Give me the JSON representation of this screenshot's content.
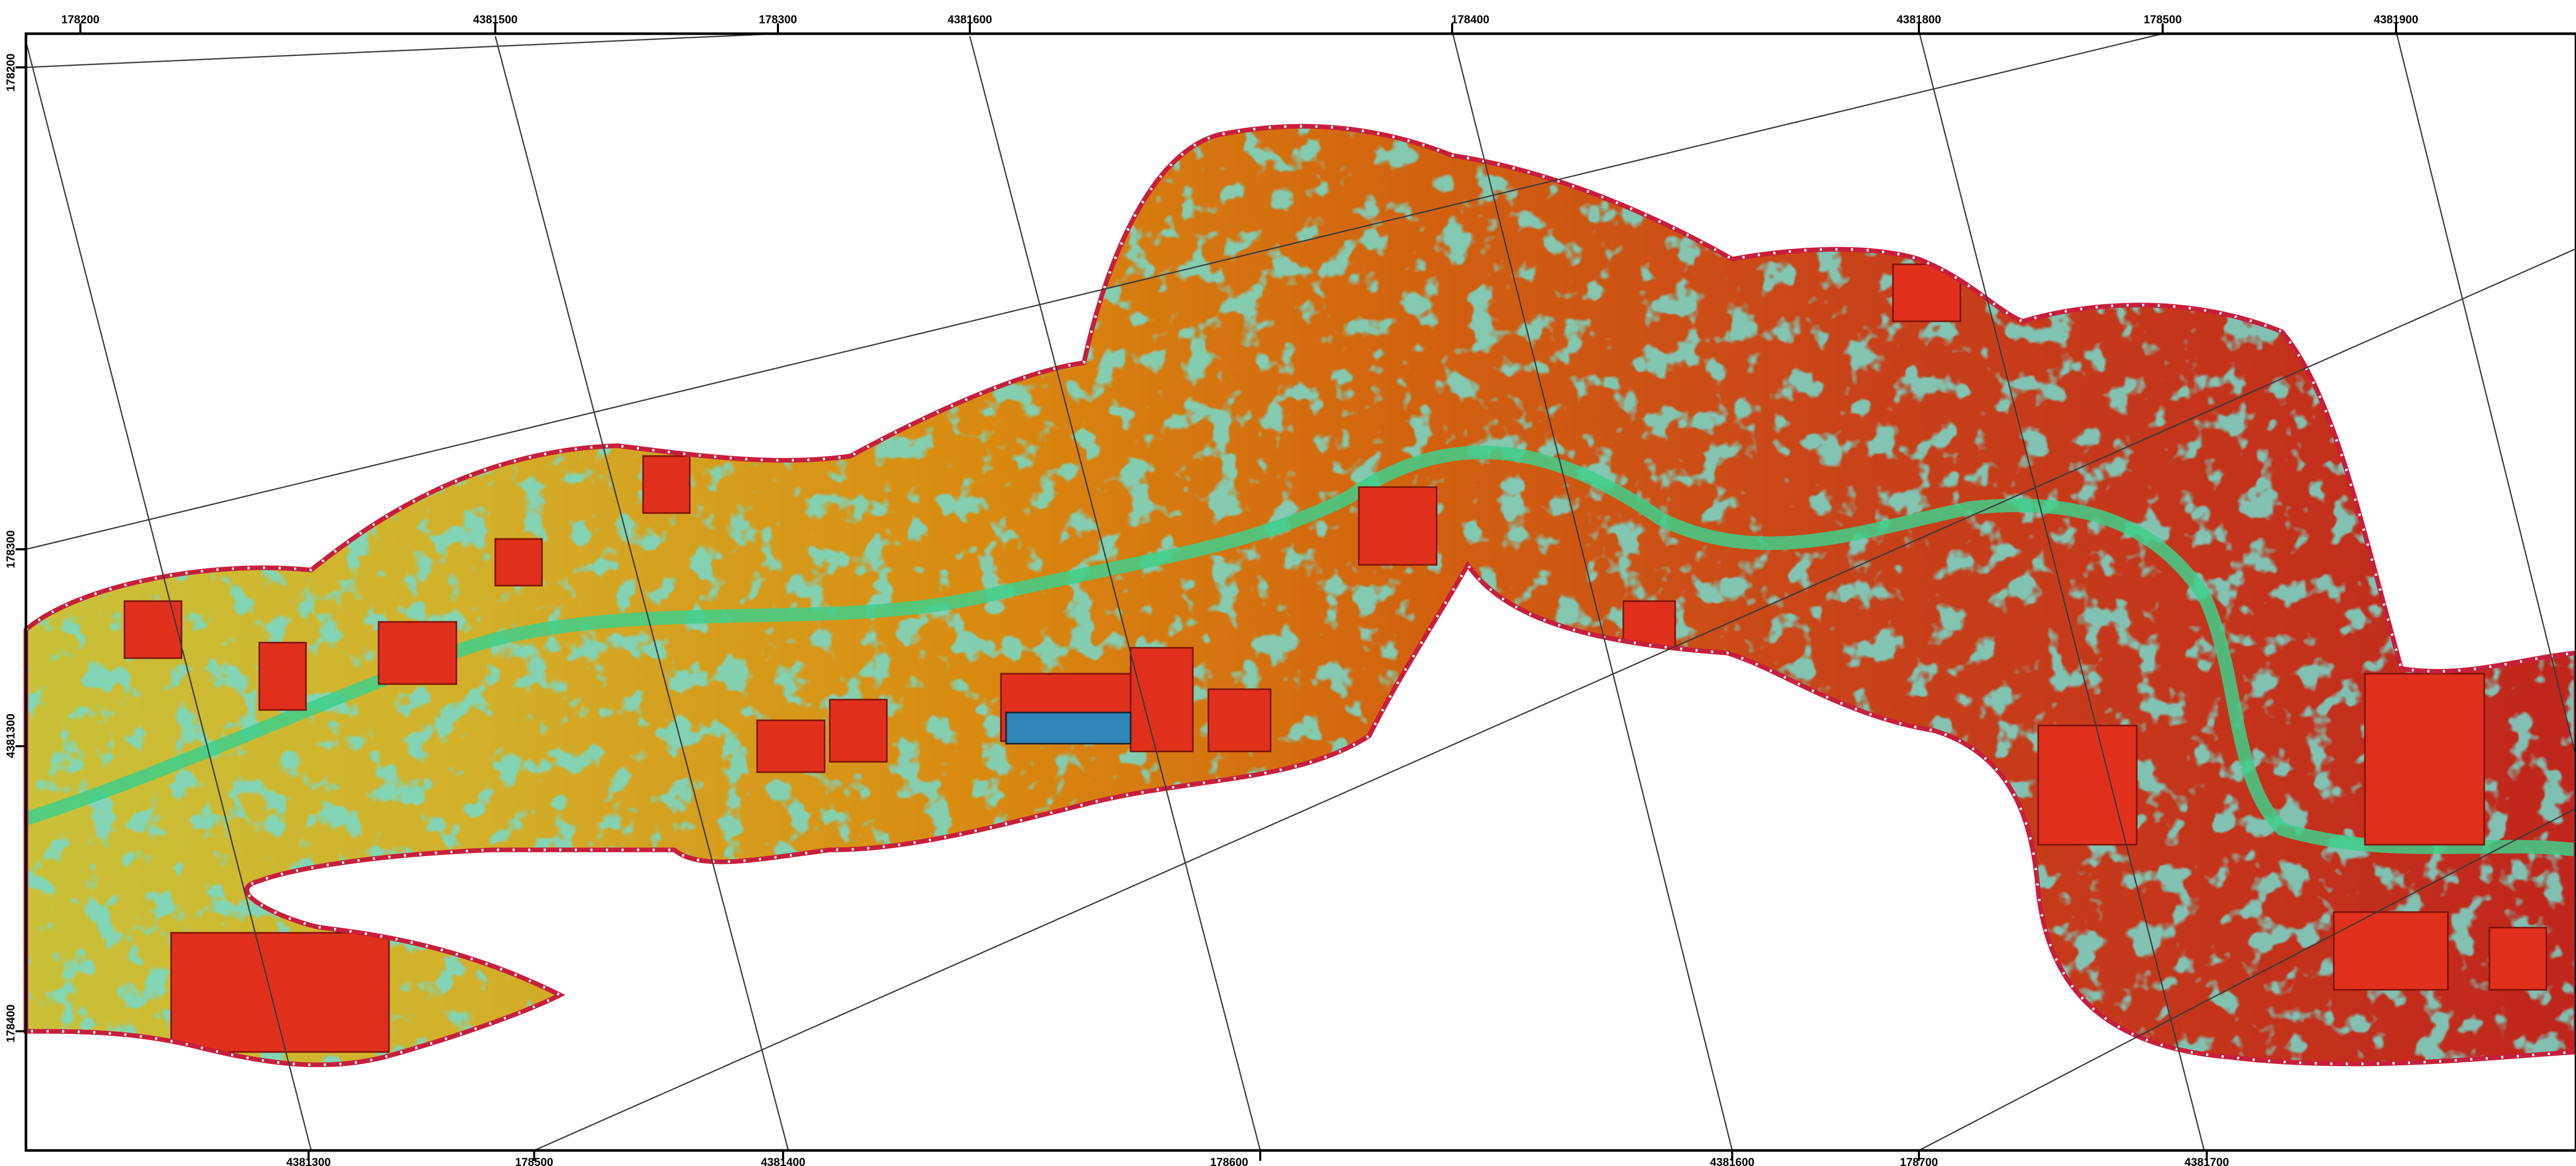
{
  "map": {
    "top_labels": [
      "178200",
      "4381500",
      "178300",
      "4381600",
      "178400",
      "4381800",
      "178500",
      "4381900"
    ],
    "bottom_labels": [
      "4381300",
      "178500",
      "4381400",
      "178600",
      "4381600",
      "178700",
      "4381700"
    ],
    "left_labels": [
      "178200",
      "178300",
      "4381300",
      "178400"
    ],
    "colors": {
      "frame": "#000000",
      "grid_line": "#3a3a3a",
      "boundary": "#c81e3c",
      "elevation_low": "#c9c23a",
      "elevation_mid": "#d98a10",
      "elevation_high": "#c8321a",
      "vegetation": "#2fb59c",
      "buildings": "#e0301c"
    },
    "legend": "none"
  }
}
